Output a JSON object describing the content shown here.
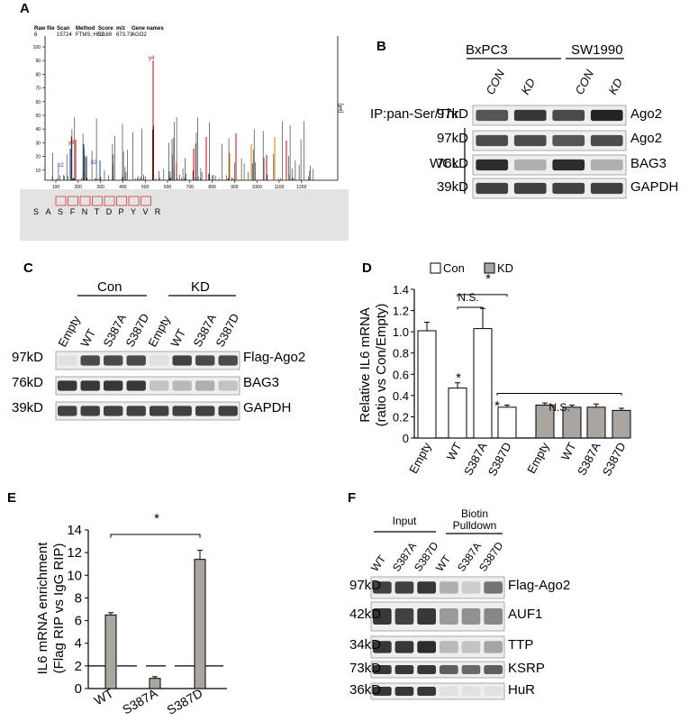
{
  "panels": {
    "A": "A",
    "B": "B",
    "C": "C",
    "D": "D",
    "E": "E",
    "F": "F"
  },
  "panelA": {
    "header_labels": [
      "Raw file",
      "Scan",
      "Method",
      "Score",
      "m/z",
      "Gene names"
    ],
    "header_values": [
      "6",
      "15724",
      "FTMS; HCD",
      "52.89",
      "673.73",
      "AGO2"
    ],
    "y_ticks": [
      "100",
      "90",
      "80",
      "70",
      "60",
      "50",
      "40",
      "30",
      "20",
      "10"
    ],
    "x_ticks": [
      "100",
      "200",
      "300",
      "400",
      "500",
      "600",
      "700",
      "800",
      "900",
      "1000",
      "1100",
      "1200"
    ],
    "right_axis_label": "[e4]",
    "peptide": [
      "S",
      "A",
      "S",
      "F",
      "N",
      "T",
      "D",
      "P",
      "Y",
      "V",
      "R"
    ],
    "ion_labels": {
      "y_main": "y4",
      "b2": "b2",
      "b3": "b3",
      "y3": "y3"
    }
  },
  "panelB": {
    "cell_lines": [
      "BxPC3",
      "SW1990"
    ],
    "lanes": [
      "CON",
      "KD",
      "CON",
      "KD"
    ],
    "ip_label": "IP:pan-Ser/Thr",
    "wcl_label": "WCL",
    "rows": [
      {
        "mw": "97kD",
        "protein": "Ago2"
      },
      {
        "mw": "97kD",
        "protein": "Ago2"
      },
      {
        "mw": "76kD",
        "protein": "BAG3"
      },
      {
        "mw": "39kD",
        "protein": "GAPDH"
      }
    ]
  },
  "panelC": {
    "groups": [
      "Con",
      "KD"
    ],
    "lanes": [
      "Empty",
      "WT",
      "S387A",
      "S387D",
      "Empty",
      "WT",
      "S387A",
      "S387D"
    ],
    "rows": [
      {
        "mw": "97kD",
        "protein": "Flag-Ago2"
      },
      {
        "mw": "76kD",
        "protein": "BAG3"
      },
      {
        "mw": "39kD",
        "protein": "GAPDH"
      }
    ]
  },
  "panelD": {
    "legend": [
      "Con",
      "KD"
    ],
    "sig_star": "*",
    "ns_label": "N.S."
  },
  "panelE": {
    "sig_star": "*"
  },
  "panelF": {
    "groups": [
      "Input",
      "Biotin Pulldown"
    ],
    "group_lines": [
      "Input",
      "Biotin",
      "Pulldown"
    ],
    "lanes": [
      "WT",
      "S387A",
      "S387D",
      "WT",
      "S387A",
      "S387D"
    ],
    "rows": [
      {
        "mw": "97kD",
        "protein": "Flag-Ago2"
      },
      {
        "mw": "42kD",
        "protein": "AUF1"
      },
      {
        "mw": "34kD",
        "protein": "TTP"
      },
      {
        "mw": "73kD",
        "protein": "KSRP"
      },
      {
        "mw": "36kD",
        "protein": "HuR"
      }
    ]
  },
  "chart_data": [
    {
      "type": "bar",
      "panel": "D",
      "ylabel": "Relative IL6 mRNA (ratio vs Con/Empty)",
      "ylabel_lines": [
        "Relative IL6 mRNA",
        "(ratio vs Con/Empty)"
      ],
      "ylim": [
        0,
        1.4
      ],
      "yticks": [
        "0",
        "0.2",
        "0.4",
        "0.6",
        "0.8",
        "1.0",
        "1.2",
        "1.4"
      ],
      "categories": [
        "Empty",
        "WT",
        "S387A",
        "S387D",
        "Empty",
        "WT",
        "S387A",
        "S387D"
      ],
      "series": [
        {
          "name": "Con",
          "values": [
            1.01,
            0.47,
            1.03,
            0.29,
            null,
            null,
            null,
            null
          ],
          "errors": [
            0.08,
            0.05,
            0.19,
            0.02,
            null,
            null,
            null,
            null
          ]
        },
        {
          "name": "KD",
          "values": [
            null,
            null,
            null,
            null,
            0.31,
            0.29,
            0.29,
            0.26
          ],
          "errors": [
            null,
            null,
            null,
            null,
            0.02,
            0.02,
            0.03,
            0.02
          ]
        }
      ],
      "annotations": [
        "*",
        "*",
        "*",
        "N.S.",
        "N.S."
      ]
    },
    {
      "type": "bar",
      "panel": "E",
      "ylabel": "IL6 mRNA enrichment (Flag RIP vs IgG RIP)",
      "ylabel_lines": [
        "IL6 mRNA enrichment",
        "(Flag RIP vs IgG RIP)"
      ],
      "ylim": [
        0,
        14
      ],
      "yticks": [
        "0",
        "2",
        "4",
        "6",
        "8",
        "10",
        "12",
        "14"
      ],
      "categories": [
        "WT",
        "S387A",
        "S387D"
      ],
      "values": [
        6.5,
        0.9,
        11.4
      ],
      "errors": [
        0.2,
        0.15,
        0.8
      ],
      "reference_line": 2,
      "annotations": [
        "*"
      ]
    }
  ]
}
